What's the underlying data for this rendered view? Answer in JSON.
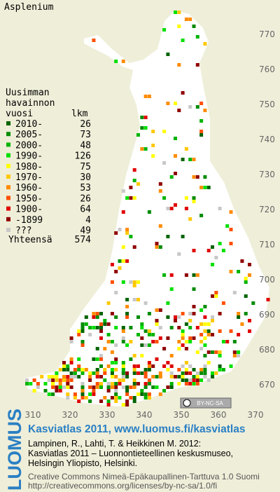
{
  "title": "Asplenium",
  "legend": {
    "heading": [
      "Uusimman",
      "havainnon"
    ],
    "col_year": "vuosi",
    "col_count": "lkm",
    "rows": [
      {
        "label": "2010-",
        "count": "26",
        "color": "#006400"
      },
      {
        "label": "2005-",
        "count": "73",
        "color": "#008c00"
      },
      {
        "label": "2000-",
        "count": "48",
        "color": "#00b400"
      },
      {
        "label": "1990-",
        "count": "126",
        "color": "#00e000"
      },
      {
        "label": "1980-",
        "count": "75",
        "color": "#ffff00"
      },
      {
        "label": "1970-",
        "count": "30",
        "color": "#ffc800"
      },
      {
        "label": "1960-",
        "count": "53",
        "color": "#ff8c00"
      },
      {
        "label": "1950-",
        "count": "26",
        "color": "#ff5000"
      },
      {
        "label": "1900-",
        "count": "64",
        "color": "#e00000"
      },
      {
        "label": "-1899",
        "count": "4",
        "color": "#900000"
      },
      {
        "label": "???",
        "count": "49",
        "color": "#c8c8c8"
      }
    ],
    "total_label": "Yhteensä",
    "total": "574"
  },
  "map": {
    "yticks": [
      "770",
      "760",
      "750",
      "740",
      "730",
      "720",
      "710",
      "700",
      "690",
      "680",
      "670"
    ],
    "xticks": [
      "310",
      "320",
      "330",
      "340",
      "350",
      "360",
      "370"
    ]
  },
  "license_badge": "BY-NC-SA",
  "footer": {
    "brand": "LUOMUS",
    "heading": "Kasviatlas 2011, www.luomus.fi/kasviatlas",
    "citation": [
      "Lampinen, R., Lahti, T. & Heikkinen M. 2012:",
      "Kasviatlas 2011 – Luonnontieteellinen keskusmuseo,",
      "Helsingin Yliopisto, Helsinki."
    ],
    "license": [
      "Creative Commons Nimeä-Epäkaupallinen-Tarttuva 1.0 Suomi",
      "http://creativecommons.org/licenses/by-nc-sa/1.0/fi"
    ]
  }
}
